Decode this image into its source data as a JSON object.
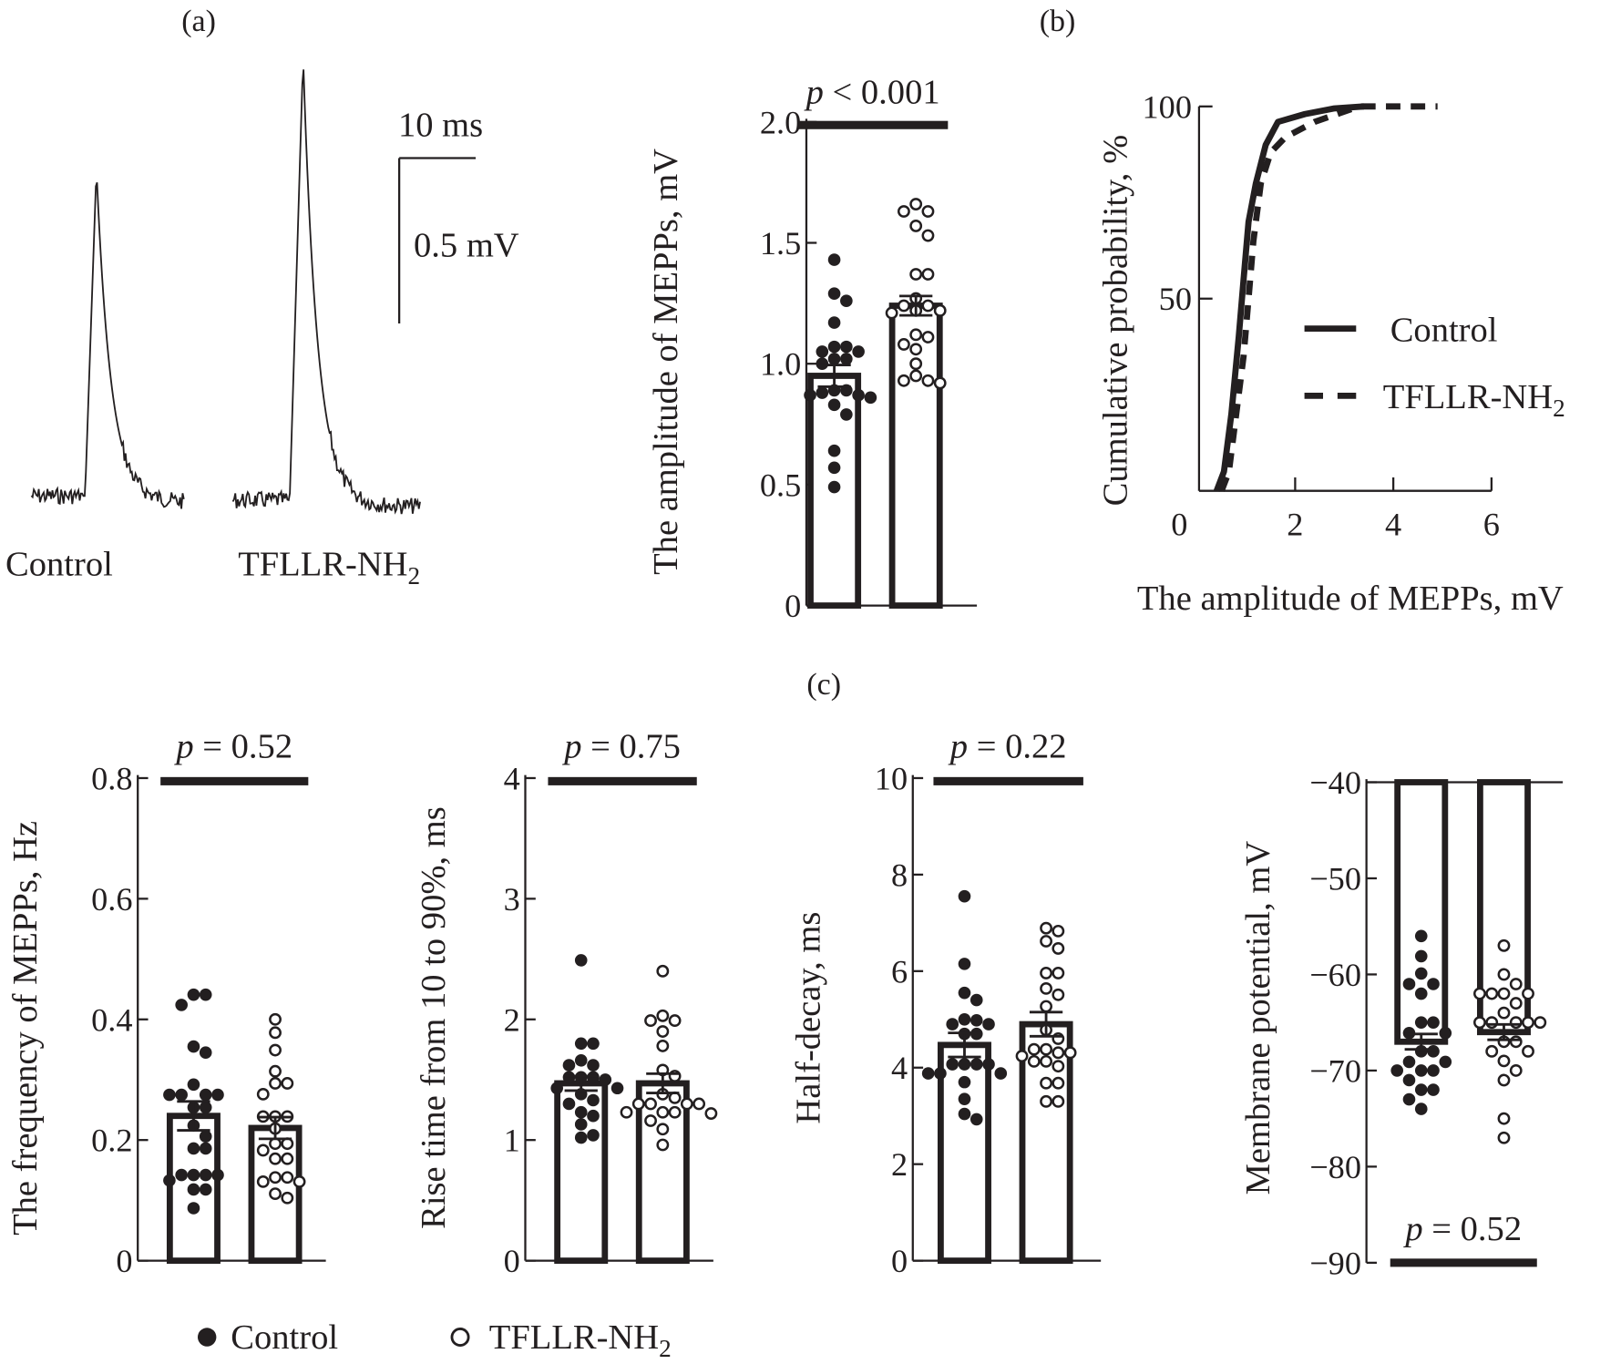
{
  "panel_labels": {
    "a": "(a)",
    "b": "(b)",
    "c": "(c)"
  },
  "traces": {
    "scale_time": "10 ms",
    "scale_voltage": "0.5 mV",
    "control_label": "Control",
    "tfllr_label_main": "TFLLR-NH",
    "tfllr_label_sub": "2"
  },
  "legend": {
    "control": "Control",
    "tfllr_main": "TFLLR-NH",
    "tfllr_sub": "2"
  },
  "colors": {
    "ink": "#231f20",
    "background": "#ffffff"
  },
  "chart_data": [
    {
      "id": "amplitude",
      "type": "bar",
      "ylabel": "The amplitude of MEPPs, mV",
      "ylim": [
        0,
        2.0
      ],
      "yticks": [
        "0",
        "0.5",
        "1.0",
        "1.5",
        "2.0"
      ],
      "p_symbol": "p",
      "p_rest": " < 0.001",
      "series": [
        {
          "name": "Control",
          "mean": 0.95,
          "sem": 0.045,
          "marker": "filled",
          "points": [
            1.43,
            1.29,
            1.26,
            1.17,
            1.07,
            1.07,
            1.05,
            1.05,
            1.02,
            1.02,
            1.0,
            0.89,
            0.89,
            0.88,
            0.87,
            0.87,
            0.86,
            0.83,
            0.79,
            0.64,
            0.57,
            0.49
          ]
        },
        {
          "name": "TFLLR-NH2",
          "mean": 1.24,
          "sem": 0.04,
          "marker": "open",
          "points": [
            1.66,
            1.63,
            1.63,
            1.57,
            1.53,
            1.37,
            1.37,
            1.27,
            1.24,
            1.24,
            1.22,
            1.22,
            1.21,
            1.12,
            1.11,
            1.08,
            1.06,
            1.0,
            0.95,
            0.93,
            0.93,
            0.92
          ]
        }
      ]
    },
    {
      "id": "cdf",
      "type": "line",
      "ylabel": "Cumulative probability, %",
      "xlabel": "The amplitude of MEPPs, mV",
      "xlim": [
        0,
        6
      ],
      "ylim": [
        0,
        100
      ],
      "xticks": [
        "0",
        "2",
        "4",
        "6"
      ],
      "yticks": [
        "50",
        "100"
      ],
      "legend": "right",
      "series": [
        {
          "name": "Control",
          "style": "solid",
          "x": [
            0.4,
            0.55,
            0.7,
            0.85,
            0.95,
            1.05,
            1.2,
            1.4,
            1.65,
            2.2,
            2.8,
            3.4
          ],
          "y": [
            0,
            5,
            20,
            40,
            55,
            70,
            80,
            90,
            96,
            98,
            99.5,
            100
          ]
        },
        {
          "name": "TFLLR-NH2",
          "style": "dashed",
          "x": [
            0.5,
            0.65,
            0.8,
            0.95,
            1.05,
            1.15,
            1.3,
            1.5,
            1.8,
            2.4,
            3.3,
            4.9
          ],
          "y": [
            0,
            5,
            20,
            35,
            50,
            65,
            80,
            88,
            92,
            96,
            100,
            100
          ]
        }
      ]
    },
    {
      "id": "frequency",
      "type": "bar",
      "ylabel": "The frequency of MEPPs, Hz",
      "ylim": [
        0,
        0.8
      ],
      "yticks": [
        "0",
        "0.2",
        "0.4",
        "0.6",
        "0.8"
      ],
      "p_symbol": "p",
      "p_rest": " = 0.52",
      "series": [
        {
          "name": "Control",
          "mean": 0.24,
          "sem": 0.024,
          "marker": "filled",
          "points": [
            0.441,
            0.441,
            0.424,
            0.355,
            0.345,
            0.292,
            0.275,
            0.275,
            0.275,
            0.275,
            0.254,
            0.254,
            0.224,
            0.206,
            0.186,
            0.186,
            0.142,
            0.142,
            0.142,
            0.142,
            0.133,
            0.118,
            0.118,
            0.087
          ]
        },
        {
          "name": "TFLLR-NH2",
          "mean": 0.22,
          "sem": 0.018,
          "marker": "open",
          "points": [
            0.4,
            0.378,
            0.349,
            0.314,
            0.294,
            0.294,
            0.276,
            0.239,
            0.239,
            0.239,
            0.219,
            0.194,
            0.194,
            0.183,
            0.169,
            0.169,
            0.138,
            0.138,
            0.131,
            0.131,
            0.111,
            0.104
          ]
        }
      ]
    },
    {
      "id": "rise",
      "type": "bar",
      "ylabel": "Rise time from 10 to 90%, ms",
      "ylim": [
        0,
        4
      ],
      "yticks": [
        "0",
        "1",
        "2",
        "3",
        "4"
      ],
      "p_symbol": "p",
      "p_rest": " = 0.75",
      "series": [
        {
          "name": "Control",
          "mean": 1.47,
          "sem": 0.06,
          "marker": "filled",
          "points": [
            2.49,
            1.8,
            1.8,
            1.66,
            1.62,
            1.62,
            1.52,
            1.52,
            1.52,
            1.5,
            1.43,
            1.43,
            1.38,
            1.33,
            1.3,
            1.23,
            1.2,
            1.13,
            1.04,
            1.02
          ]
        },
        {
          "name": "TFLLR-NH2",
          "mean": 1.47,
          "sem": 0.08,
          "marker": "open",
          "points": [
            2.4,
            2.03,
            1.99,
            1.99,
            1.9,
            1.78,
            1.58,
            1.53,
            1.38,
            1.35,
            1.3,
            1.3,
            1.3,
            1.3,
            1.23,
            1.23,
            1.23,
            1.22,
            1.16,
            1.09,
            0.96
          ]
        }
      ]
    },
    {
      "id": "half_decay",
      "type": "bar",
      "ylabel": "Half-decay, ms",
      "ylim": [
        0,
        10
      ],
      "yticks": [
        "0",
        "2",
        "4",
        "6",
        "8",
        "10"
      ],
      "p_symbol": "p",
      "p_rest": " = 0.22",
      "series": [
        {
          "name": "Control",
          "mean": 4.47,
          "sem": 0.25,
          "marker": "filled",
          "points": [
            7.55,
            6.15,
            5.55,
            5.4,
            5.0,
            4.98,
            4.9,
            4.9,
            4.7,
            4.7,
            4.07,
            4.07,
            4.07,
            4.07,
            3.88,
            3.88,
            3.88,
            3.7,
            3.35,
            3.04,
            2.93
          ]
        },
        {
          "name": "TFLLR-NH2",
          "mean": 4.9,
          "sem": 0.25,
          "marker": "open",
          "points": [
            6.89,
            6.83,
            6.62,
            6.47,
            5.96,
            5.96,
            5.64,
            5.51,
            5.27,
            4.78,
            4.6,
            4.38,
            4.38,
            4.31,
            4.31,
            4.24,
            4.13,
            4.13,
            4.03,
            3.68,
            3.68,
            3.3,
            3.3
          ]
        }
      ]
    },
    {
      "id": "membrane",
      "type": "bar",
      "ylabel": "Membrane potential, mV",
      "ylim": [
        -90,
        -40
      ],
      "yticks": [
        "−90",
        "−80",
        "−70",
        "−60",
        "−50",
        "−40"
      ],
      "p_symbol": "p",
      "p_rest": " = 0.52",
      "series": [
        {
          "name": "Control",
          "mean": -67,
          "sem": 0.8,
          "marker": "filled",
          "points": [
            -56,
            -58.1,
            -59.9,
            -61,
            -61,
            -62,
            -65,
            -65,
            -66.1,
            -66.1,
            -68,
            -68,
            -69.1,
            -69.1,
            -70,
            -70,
            -70,
            -71,
            -72,
            -72,
            -73,
            -74
          ]
        },
        {
          "name": "TFLLR-NH2",
          "mean": -66,
          "sem": 0.8,
          "marker": "open",
          "points": [
            -57,
            -60,
            -61,
            -62,
            -62,
            -62,
            -62,
            -63,
            -64,
            -65,
            -65,
            -65,
            -65,
            -65,
            -67,
            -67,
            -68,
            -68,
            -69,
            -70,
            -71,
            -75,
            -77
          ]
        }
      ]
    }
  ]
}
